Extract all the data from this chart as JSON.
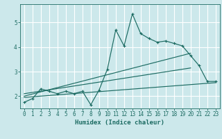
{
  "title": "",
  "xlabel": "Humidex (Indice chaleur)",
  "ylabel": "",
  "bg_color": "#cce8eb",
  "grid_color": "#ffffff",
  "line_color": "#1c6b62",
  "xlim": [
    -0.5,
    23.5
  ],
  "ylim": [
    1.5,
    5.75
  ],
  "xticks": [
    0,
    1,
    2,
    3,
    4,
    5,
    6,
    7,
    8,
    9,
    10,
    11,
    12,
    13,
    14,
    15,
    16,
    17,
    18,
    19,
    20,
    21,
    22,
    23
  ],
  "yticks": [
    2,
    3,
    4,
    5
  ],
  "main_x": [
    0,
    1,
    2,
    3,
    4,
    5,
    6,
    7,
    8,
    9,
    10,
    11,
    12,
    13,
    14,
    15,
    16,
    17,
    18,
    19,
    20,
    21,
    22,
    23
  ],
  "main_y": [
    1.75,
    1.9,
    2.3,
    2.2,
    2.1,
    2.2,
    2.1,
    2.2,
    1.65,
    2.25,
    3.1,
    4.7,
    4.05,
    5.35,
    4.55,
    4.35,
    4.2,
    4.25,
    4.15,
    4.05,
    3.65,
    3.25,
    2.6,
    2.6
  ],
  "line1_x": [
    0,
    23
  ],
  "line1_y": [
    1.95,
    2.55
  ],
  "line2_x": [
    0,
    20
  ],
  "line2_y": [
    2.0,
    3.75
  ],
  "line3_x": [
    0,
    20
  ],
  "line3_y": [
    2.1,
    3.15
  ],
  "xlabel_fontsize": 6.5,
  "tick_fontsize": 5.5,
  "linewidth": 0.85
}
